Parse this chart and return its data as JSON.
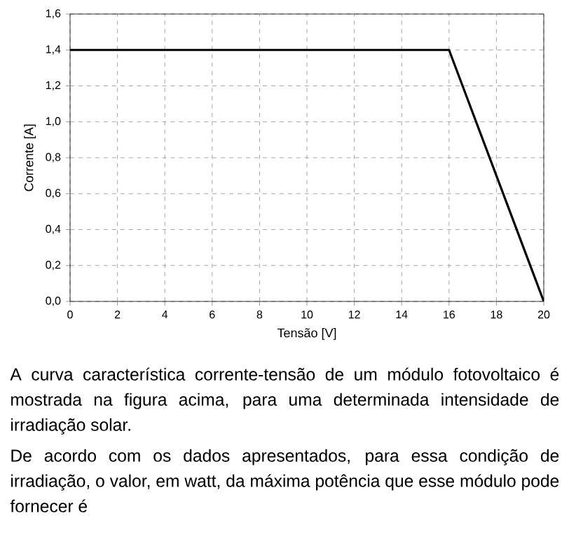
{
  "chart_data": {
    "type": "line",
    "xlabel": "Tensão [V]",
    "ylabel": "Corrente [A]",
    "x": [
      0,
      16,
      20
    ],
    "series": [
      {
        "color": "#000000",
        "values": [
          1.4,
          1.4,
          0
        ]
      }
    ],
    "xlim": [
      0,
      20
    ],
    "ylim": [
      0,
      1.6
    ],
    "xticks": [
      0,
      2,
      4,
      6,
      8,
      10,
      12,
      14,
      16,
      18,
      20
    ],
    "yticks": [
      {
        "value": 0,
        "label": "0,0"
      },
      {
        "value": 0.2,
        "label": "0,2"
      },
      {
        "value": 0.4,
        "label": "0,4"
      },
      {
        "value": 0.6,
        "label": "0,6"
      },
      {
        "value": 0.8,
        "label": "0,8"
      },
      {
        "value": 1.0,
        "label": "1,0"
      },
      {
        "value": 1.2,
        "label": "1,2"
      },
      {
        "value": 1.4,
        "label": "1,4"
      },
      {
        "value": 1.6,
        "label": "1,6"
      }
    ],
    "grid": true,
    "marker": "none",
    "line_style": "solid",
    "annotations": [
      "A curva característica corrente-tensão de um módulo fotovoltaico é mostrada na figura acima, para uma determinada intensidade de irradiação solar.",
      "De acordo com os dados apresentados, para essa condição de irradiação, o valor, em watt, da máxima potência que esse módulo pode fornecer é"
    ]
  }
}
